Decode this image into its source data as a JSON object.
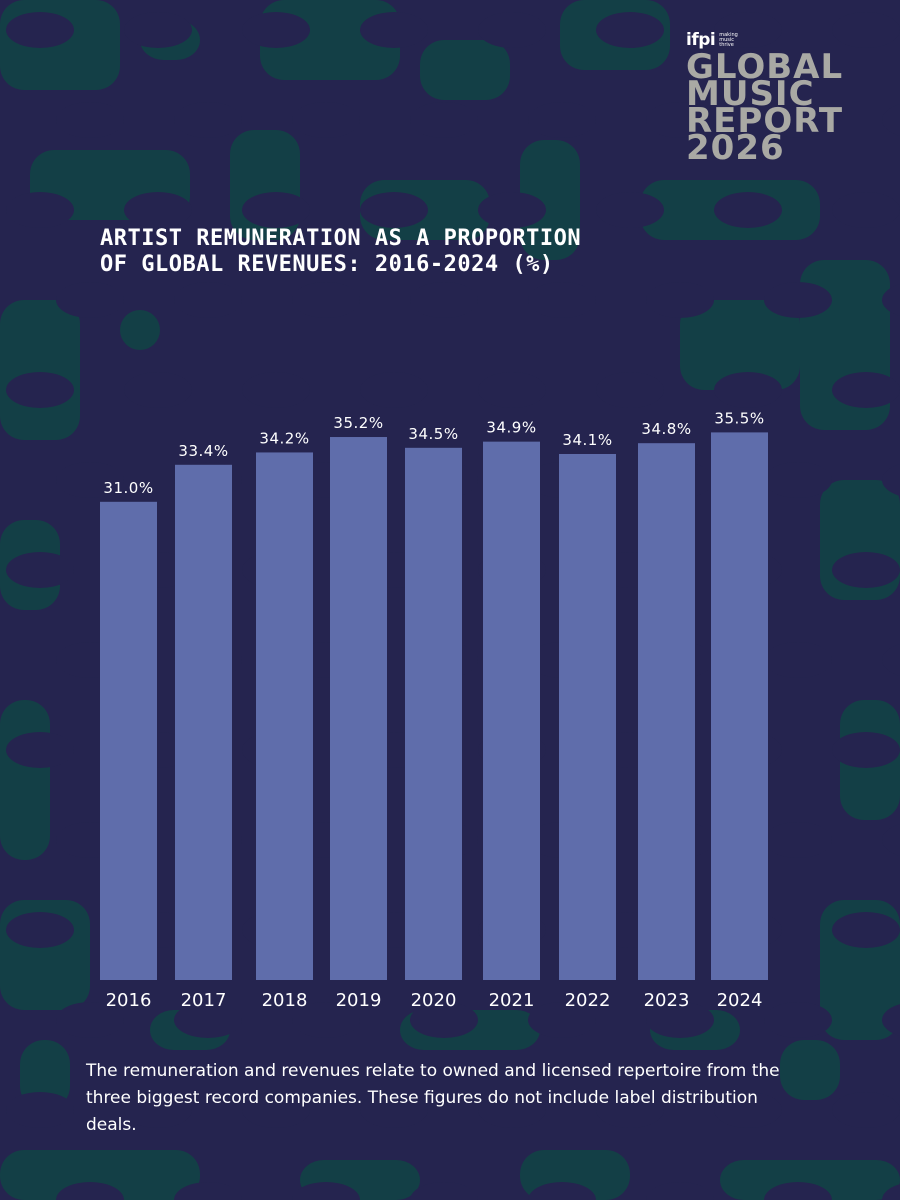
{
  "brand": {
    "logo": "ifpi",
    "tagline": [
      "making",
      "music",
      "thrive"
    ],
    "report_lines": [
      "GLOBAL",
      "MUSIC",
      "REPORT",
      "2026"
    ]
  },
  "colors": {
    "background": "#25244f",
    "pattern": "#124345",
    "bar": "#5f6dab",
    "text": "#ffffff",
    "report_title": "#a9a9a4"
  },
  "chart_data": {
    "type": "bar",
    "title_lines": [
      "ARTIST REMUNERATION AS A PROPORTION",
      "OF GLOBAL REVENUES: 2016-2024 (%)"
    ],
    "categories": [
      "2016",
      "2017",
      "2018",
      "2019",
      "2020",
      "2021",
      "2022",
      "2023",
      "2024"
    ],
    "values": [
      31.0,
      33.4,
      34.2,
      35.2,
      34.5,
      34.9,
      34.1,
      34.8,
      35.5
    ],
    "labels": [
      "31.0%",
      "33.4%",
      "34.2%",
      "35.2%",
      "34.5%",
      "34.9%",
      "34.1%",
      "34.8%",
      "35.5%"
    ],
    "xlabel": "",
    "ylabel": "",
    "ylim": [
      0,
      37.6
    ],
    "grid": false
  },
  "footnote": "The remuneration and revenues relate to owned and licensed repertoire from the three biggest record companies. These figures do not include label distribution deals."
}
